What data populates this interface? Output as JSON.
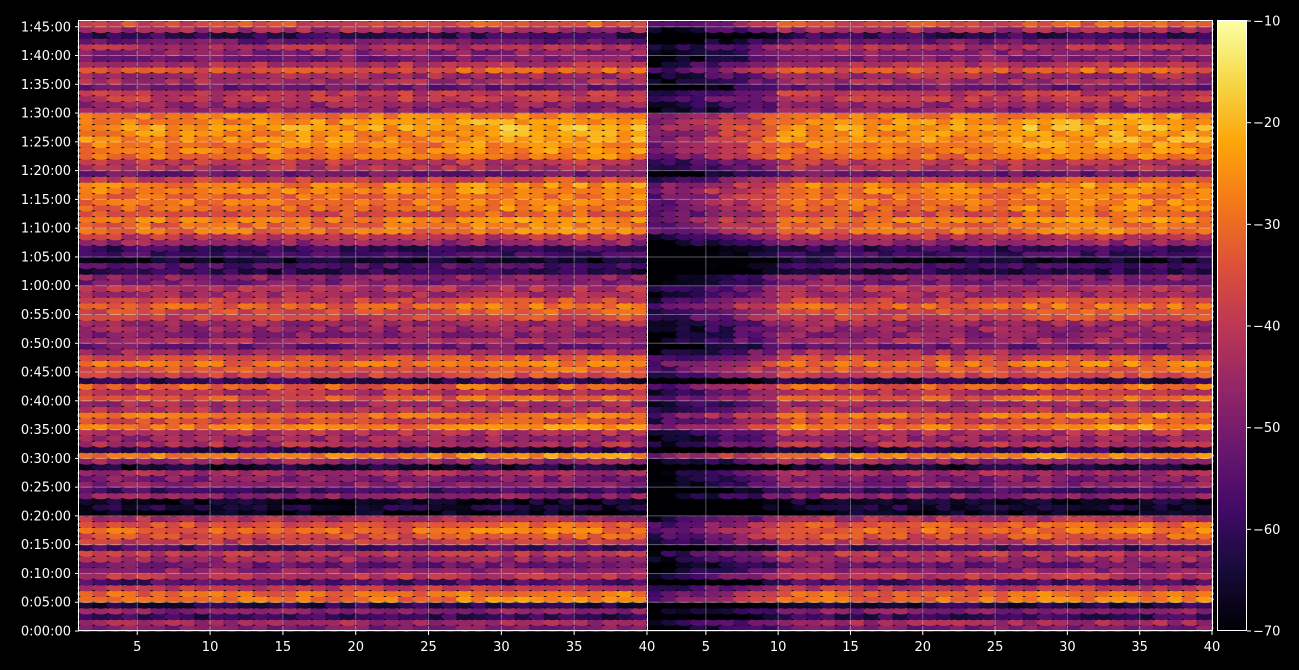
{
  "chart_data": [
    {
      "type": "heatmap",
      "panel": "left",
      "title": "",
      "xlabel": "",
      "ylabel": "",
      "xlim": [
        1,
        40
      ],
      "ylim": [
        0,
        106
      ],
      "x_ticks": [
        5,
        10,
        15,
        20,
        25,
        30,
        35,
        40
      ],
      "y_ticks": [
        "0:00:00",
        "0:05:00",
        "0:10:00",
        "0:15:00",
        "0:20:00",
        "0:25:00",
        "0:30:00",
        "0:35:00",
        "0:40:00",
        "0:45:00",
        "0:50:00",
        "0:55:00",
        "1:00:00",
        "1:05:00",
        "1:10:00",
        "1:15:00",
        "1:20:00",
        "1:25:00",
        "1:30:00",
        "1:35:00",
        "1:40:00",
        "1:45:00"
      ],
      "grid": true,
      "x_columns": 39,
      "y_rows_minutes": 106,
      "band_levels_by_minute_approx_dB": [
        -50,
        -44,
        -60,
        -48,
        -62,
        -30,
        -31,
        -40,
        -57,
        -40,
        -47,
        -52,
        -44,
        -40,
        -58,
        -40,
        -35,
        -31,
        -34,
        -42,
        -68,
        -64,
        -66,
        -48,
        -58,
        -48,
        -49,
        -44,
        -65,
        -46,
        -28,
        -62,
        -42,
        -46,
        -42,
        -28,
        -36,
        -30,
        -42,
        -44,
        -34,
        -42,
        -32,
        -62,
        -38,
        -34,
        -30,
        -36,
        -44,
        -52,
        -44,
        -48,
        -46,
        -45,
        -38,
        -36,
        -32,
        -38,
        -44,
        -42,
        -50,
        -48,
        -62,
        -56,
        -66,
        -58,
        -60,
        -46,
        -40,
        -30,
        -31,
        -28,
        -35,
        -30,
        -30,
        -31,
        -28,
        -28,
        -38,
        -52,
        -42,
        -40,
        -30,
        -28,
        -28,
        -26,
        -26,
        -24,
        -26,
        -28,
        -48,
        -46,
        -40,
        -40,
        -52,
        -44,
        -44,
        -34,
        -42,
        -50,
        -48,
        -42,
        -52,
        -60,
        -44,
        -36
      ]
    },
    {
      "type": "heatmap",
      "panel": "right",
      "title": "",
      "xlabel": "",
      "ylabel": "",
      "xlim": [
        1,
        40
      ],
      "ylim": [
        0,
        106
      ],
      "x_ticks": [
        5,
        10,
        15,
        20,
        25,
        30,
        35,
        40
      ],
      "grid": true,
      "x_columns": 39,
      "y_rows_minutes": 106,
      "note_left_columns_darker": true
    }
  ],
  "colorbar": {
    "colormap": "inferno",
    "vmin": -70,
    "vmax": -10,
    "ticks": [
      "−70",
      "−60",
      "−50",
      "−40",
      "−30",
      "−20",
      "−10"
    ],
    "tick_values": [
      -70,
      -60,
      -50,
      -40,
      -30,
      -20,
      -10
    ]
  },
  "colors": {
    "background": "#000000",
    "axes_edge": "#ffffff",
    "grid": "#ffffff",
    "text": "#ffffff"
  }
}
